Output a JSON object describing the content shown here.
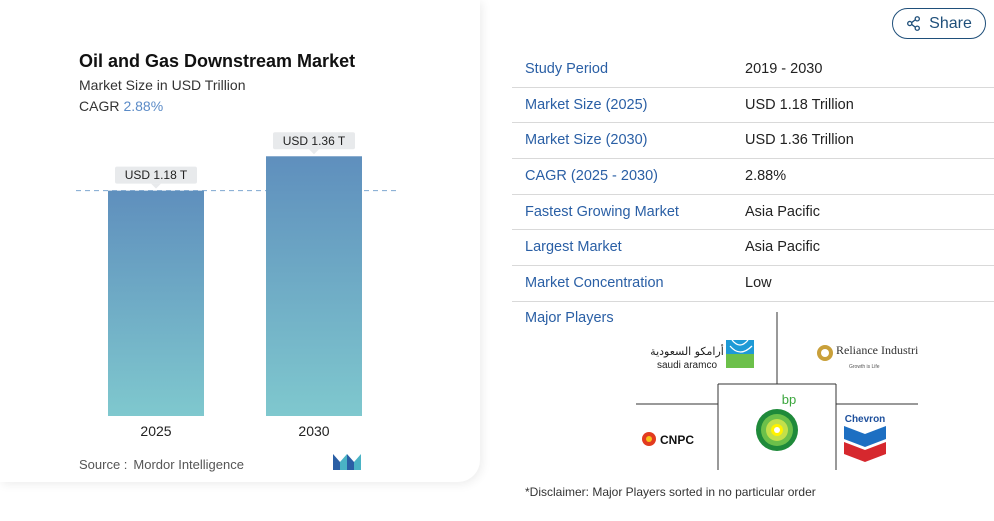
{
  "chart_data": {
    "type": "bar",
    "title": "Oil and Gas Downstream Market",
    "subtitle": "Market Size in USD Trillion",
    "cagr_label": "CAGR",
    "cagr_value": "2.88%",
    "categories": [
      "2025",
      "2030"
    ],
    "values": [
      1.18,
      1.36
    ],
    "data_labels": [
      "USD 1.18 T",
      "USD 1.36 T"
    ],
    "ylim": [
      0,
      1.55
    ],
    "grid": false,
    "reference_line_value": 1.18,
    "bar_colors": {
      "top": "#5f8fbd",
      "bottom": "#7fc8ce"
    }
  },
  "source": {
    "label": "Source :",
    "value": "Mordor Intelligence"
  },
  "share": {
    "label": "Share",
    "icon": "share-icon"
  },
  "info_table": [
    {
      "label": "Study Period",
      "value": "2019 - 2030"
    },
    {
      "label": "Market Size (2025)",
      "value": "USD 1.18 Trillion"
    },
    {
      "label": "Market Size (2030)",
      "value": "USD 1.36 Trillion"
    },
    {
      "label": "CAGR (2025 - 2030)",
      "value": "2.88%"
    },
    {
      "label": "Fastest Growing Market",
      "value": "Asia Pacific"
    },
    {
      "label": "Largest Market",
      "value": "Asia Pacific"
    },
    {
      "label": "Market Concentration",
      "value": "Low"
    }
  ],
  "major_players": {
    "label": "Major Players",
    "players": [
      "saudi aramco",
      "Reliance Industries Limited",
      "CNPC",
      "bp",
      "Chevron"
    ],
    "aramco_arabic": "أرامكو السعودية",
    "reliance_tagline": "Growth is Life"
  },
  "disclaimer": "*Disclaimer: Major Players sorted in no particular order"
}
